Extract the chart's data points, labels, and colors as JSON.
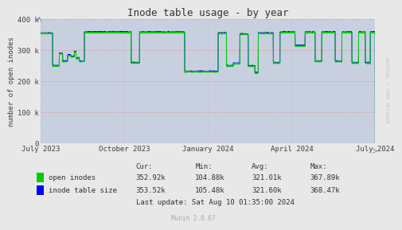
{
  "title": "Inode table usage - by year",
  "ylabel": "number of open inodes",
  "bg_color": "#e8e8e8",
  "plot_bg_color": "#c8d0e0",
  "hgrid_color": "#e88080",
  "vgrid_color": "#b8b8d0",
  "line1_color": "#00cc00",
  "line2_color": "#0000ff",
  "ylim": [
    0,
    400000
  ],
  "yticks": [
    0,
    100000,
    200000,
    300000,
    400000
  ],
  "ytick_labels": [
    "0",
    "100 k",
    "200 k",
    "300 k",
    "400 k"
  ],
  "xticklabels": [
    "July 2023",
    "October 2023",
    "January 2024",
    "April 2024",
    "July 2024"
  ],
  "legend_labels": [
    "open inodes",
    "inode table size"
  ],
  "legend_colors": [
    "#00cc00",
    "#0000ff"
  ],
  "stats_headers": [
    "Cur:",
    "Min:",
    "Avg:",
    "Max:"
  ],
  "stats_line1": [
    "352.92k",
    "104.88k",
    "321.01k",
    "367.89k"
  ],
  "stats_line2": [
    "353.52k",
    "105.48k",
    "321.60k",
    "368.47k"
  ],
  "last_update": "Last update: Sat Aug 10 01:35:00 2024",
  "munin_version": "Munin 2.0.67",
  "rrdtool_label": "RRDTOOL / TOBI OETIKER",
  "title_fontsize": 9,
  "axis_fontsize": 6.5,
  "legend_fontsize": 6.5,
  "stats_fontsize": 6.5
}
